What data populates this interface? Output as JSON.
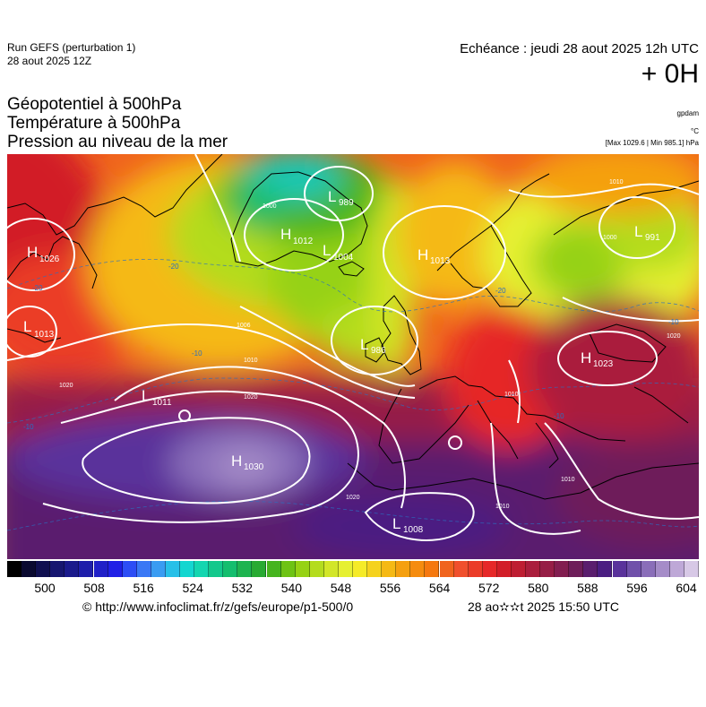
{
  "header": {
    "run_title": "Run GEFS (perturbation 1)",
    "run_date": "28 aout 2025 12Z",
    "echeance": "Echéance : jeudi 28 aout 2025 12h UTC",
    "offset": "+ 0H"
  },
  "parameters": {
    "line1": "Géopotentiel à 500hPa",
    "line2": "Température à 500hPa",
    "line3": "Pression au niveau de la mer"
  },
  "units": {
    "geopotential": "gpdam",
    "temperature": "°C",
    "pressure_range": "[Max 1029.6 | Min 985.1] hPa"
  },
  "pressure_centers": [
    {
      "type": "H",
      "value": "1026"
    },
    {
      "type": "L",
      "value": "1013"
    },
    {
      "type": "L",
      "value": "1011"
    },
    {
      "type": "H",
      "value": "1030"
    },
    {
      "type": "H",
      "value": "1012"
    },
    {
      "type": "L",
      "value": "989"
    },
    {
      "type": "L",
      "value": "1004"
    },
    {
      "type": "H",
      "value": "1013"
    },
    {
      "type": "L",
      "value": "986"
    },
    {
      "type": "H",
      "value": "1023"
    },
    {
      "type": "L",
      "value": "991"
    },
    {
      "type": "L",
      "value": "1008"
    }
  ],
  "isobar_labels": [
    "1000",
    "1006",
    "1010",
    "1020",
    "1020",
    "1010",
    "1010",
    "1020",
    "1010",
    "1000",
    "1010",
    "1020"
  ],
  "temperature_labels": [
    "-20",
    "-20",
    "-10",
    "-10",
    "-10",
    "-20",
    "-10"
  ],
  "colorbar": {
    "ticks": [
      "500",
      "508",
      "516",
      "524",
      "532",
      "540",
      "548",
      "556",
      "564",
      "572",
      "580",
      "588",
      "596",
      "604"
    ],
    "colors": [
      "#000000",
      "#0a0a30",
      "#101050",
      "#161670",
      "#1a1a8c",
      "#1e1eaa",
      "#2020c8",
      "#2020e6",
      "#2d4df5",
      "#3a78f5",
      "#3a9cf2",
      "#28c0e8",
      "#14d6d0",
      "#14d6b0",
      "#14c88c",
      "#14be6e",
      "#1eb450",
      "#28aa32",
      "#46b41e",
      "#6ec314",
      "#96d214",
      "#b4dc1e",
      "#d2e628",
      "#e6f032",
      "#f5eb28",
      "#f5d21e",
      "#f5b914",
      "#f5a00f",
      "#f58c0f",
      "#f5780f",
      "#f0641e",
      "#f0502d",
      "#eb3c28",
      "#e62828",
      "#d21e28",
      "#be1e32",
      "#aa1e3c",
      "#961e46",
      "#821e50",
      "#6e1e5a",
      "#5a1e6e",
      "#4b1e82",
      "#5a329b",
      "#7050aa",
      "#8a6eb9",
      "#a58cc8",
      "#bea8d7",
      "#d7c8e6"
    ]
  },
  "footer": {
    "credit": "© http://www.infoclimat.fr/z/gefs/europe/p1-500/0",
    "generated": "28 ao✫✫t 2025 15:50 UTC"
  }
}
